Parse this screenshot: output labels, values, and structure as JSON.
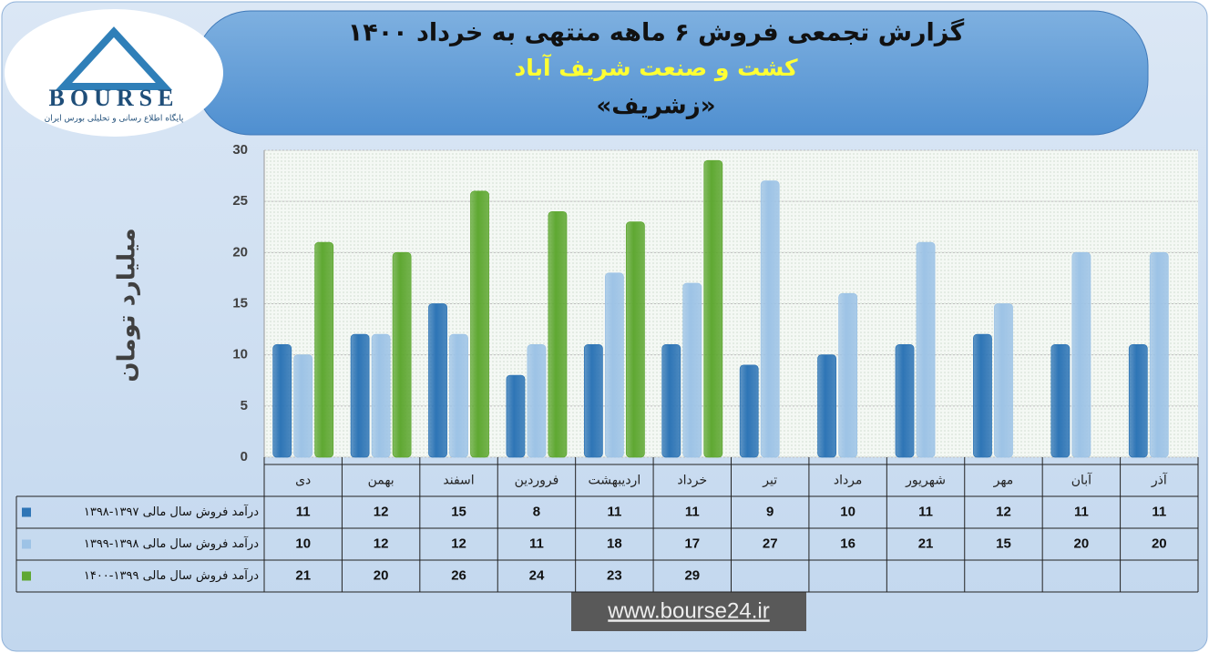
{
  "logo": {
    "name": "BOURSE",
    "tagline": "پایگاه اطلاع رسانی و تحلیلی بورس ایران"
  },
  "chart_data": {
    "type": "bar",
    "title": "گزارش تجمعی فروش ۶ ماهه منتهی به خرداد ۱۴۰۰",
    "subtitle": "کشت و صنعت شریف آباد",
    "symbol": "«زشریف»",
    "y_label": "میلیارد تومان",
    "categories": [
      "دی",
      "بهمن",
      "اسفند",
      "فروردین",
      "اردیبهشت",
      "خرداد",
      "تیر",
      "مرداد",
      "شهریور",
      "مهر",
      "آبان",
      "آذر"
    ],
    "series": [
      {
        "name": "درآمد فروش سال مالی ۱۳۹۷-۱۳۹۸",
        "color": "#2e75b6",
        "values": [
          11,
          12,
          15,
          8,
          11,
          11,
          9,
          10,
          11,
          12,
          11,
          11
        ]
      },
      {
        "name": "درآمد فروش سال مالی ۱۳۹۸-۱۳۹۹",
        "color": "#9dc3e6",
        "values": [
          10,
          12,
          12,
          11,
          18,
          17,
          27,
          16,
          21,
          15,
          20,
          20
        ]
      },
      {
        "name": "درآمد فروش سال مالی ۱۳۹۹-۱۴۰۰",
        "color": "#5fa832",
        "values": [
          21,
          20,
          26,
          24,
          23,
          29,
          null,
          null,
          null,
          null,
          null,
          null
        ]
      }
    ],
    "ylim": [
      0,
      30
    ],
    "yticks": [
      0,
      5,
      10,
      15,
      20,
      25,
      30
    ],
    "grid": true,
    "website": "www.bourse24.ir"
  }
}
